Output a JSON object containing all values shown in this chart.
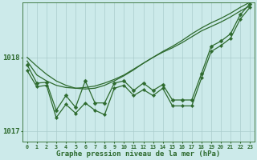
{
  "background_color": "#cceaea",
  "grid_color": "#aacccc",
  "line_color": "#2d6a2d",
  "marker_color": "#2d6a2d",
  "xlabel": "Graphe pression niveau de la mer (hPa)",
  "ylim": [
    1016.85,
    1018.75
  ],
  "xlim": [
    -0.5,
    23.5
  ],
  "yticks": [
    1017.0,
    1018.0
  ],
  "ytick_labels": [
    "1017",
    "1018"
  ],
  "xticks": [
    0,
    1,
    2,
    3,
    4,
    5,
    6,
    7,
    8,
    9,
    10,
    11,
    12,
    13,
    14,
    15,
    16,
    17,
    18,
    19,
    20,
    21,
    22,
    23
  ],
  "smooth1": [
    1018.0,
    1017.88,
    1017.77,
    1017.68,
    1017.62,
    1017.58,
    1017.57,
    1017.58,
    1017.62,
    1017.68,
    1017.75,
    1017.83,
    1017.92,
    1018.0,
    1018.08,
    1018.15,
    1018.23,
    1018.32,
    1018.4,
    1018.47,
    1018.53,
    1018.6,
    1018.68,
    1018.75
  ],
  "smooth2": [
    1017.95,
    1017.76,
    1017.68,
    1017.62,
    1017.59,
    1017.58,
    1017.59,
    1017.61,
    1017.65,
    1017.7,
    1017.76,
    1017.84,
    1017.92,
    1018.0,
    1018.07,
    1018.13,
    1018.2,
    1018.28,
    1018.36,
    1018.42,
    1018.48,
    1018.55,
    1018.63,
    1018.7
  ],
  "noisy1": [
    1017.9,
    1017.65,
    1017.66,
    1017.28,
    1017.48,
    1017.32,
    1017.68,
    1017.38,
    1017.38,
    1017.65,
    1017.68,
    1017.55,
    1017.65,
    1017.55,
    1017.63,
    1017.42,
    1017.42,
    1017.42,
    1017.78,
    1018.15,
    1018.22,
    1018.32,
    1018.58,
    1018.73
  ],
  "noisy2": [
    1017.82,
    1017.6,
    1017.62,
    1017.18,
    1017.36,
    1017.24,
    1017.38,
    1017.28,
    1017.22,
    1017.58,
    1017.62,
    1017.48,
    1017.56,
    1017.48,
    1017.58,
    1017.34,
    1017.34,
    1017.34,
    1017.72,
    1018.08,
    1018.16,
    1018.26,
    1018.52,
    1018.68
  ],
  "marker_size": 2.5,
  "linewidth": 0.9
}
